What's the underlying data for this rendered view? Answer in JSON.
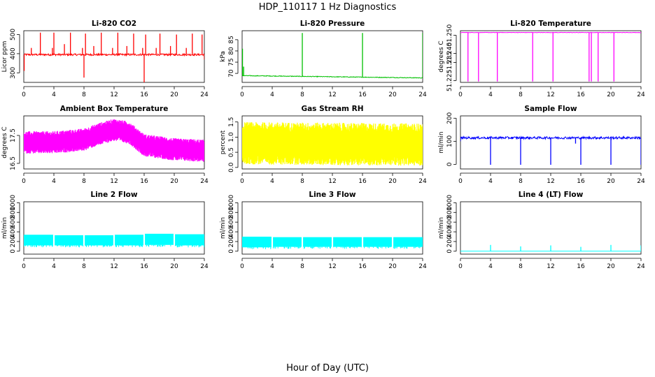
{
  "figure": {
    "title": "HDP_110117  1 Hz Diagnostics",
    "xlabel": "Hour of Day (UTC)",
    "colors": {
      "co2": "#ff0000",
      "pressure": "#00c000",
      "temperature": "#ff00ff",
      "ambient": "#ff00ff",
      "rh": "#ffff00",
      "sample_flow": "#0000ff",
      "line_flow": "#00ffff"
    }
  },
  "chart_data": [
    {
      "type": "line",
      "title": "Li-820 CO2",
      "ylabel": "Licor ppm",
      "xlim": [
        0,
        24
      ],
      "ylim": [
        250,
        520
      ],
      "xticks": [
        "0",
        "4",
        "8",
        "12",
        "16",
        "20",
        "24"
      ],
      "yticks": [
        {
          "value": 300,
          "label": "300"
        },
        {
          "value": 400,
          "label": "400"
        },
        {
          "value": 500,
          "label": "500"
        }
      ],
      "color": "#ff0000",
      "style": "spiky",
      "baseline": 395,
      "noise": 5,
      "spikes": [
        {
          "x": 0.05,
          "y": 310
        },
        {
          "x": 1.0,
          "y": 430
        },
        {
          "x": 2.2,
          "y": 510
        },
        {
          "x": 3.8,
          "y": 430
        },
        {
          "x": 4.0,
          "y": 510
        },
        {
          "x": 5.4,
          "y": 450
        },
        {
          "x": 6.2,
          "y": 510
        },
        {
          "x": 7.8,
          "y": 430
        },
        {
          "x": 8.0,
          "y": 275
        },
        {
          "x": 8.2,
          "y": 505
        },
        {
          "x": 9.3,
          "y": 440
        },
        {
          "x": 10.3,
          "y": 510
        },
        {
          "x": 11.8,
          "y": 430
        },
        {
          "x": 12.5,
          "y": 510
        },
        {
          "x": 13.7,
          "y": 440
        },
        {
          "x": 14.6,
          "y": 505
        },
        {
          "x": 15.8,
          "y": 430
        },
        {
          "x": 16.0,
          "y": 250
        },
        {
          "x": 16.2,
          "y": 500
        },
        {
          "x": 17.6,
          "y": 430
        },
        {
          "x": 18.1,
          "y": 505
        },
        {
          "x": 19.5,
          "y": 440
        },
        {
          "x": 20.3,
          "y": 500
        },
        {
          "x": 21.6,
          "y": 430
        },
        {
          "x": 22.4,
          "y": 505
        },
        {
          "x": 23.7,
          "y": 500
        },
        {
          "x": 24.0,
          "y": 370
        }
      ]
    },
    {
      "type": "line",
      "title": "Li-820 Pressure",
      "ylabel": "kPa",
      "xlim": [
        0,
        24
      ],
      "ylim": [
        66,
        89
      ],
      "xticks": [
        "0",
        "4",
        "8",
        "12",
        "16",
        "20",
        "24"
      ],
      "yticks": [
        {
          "value": 70,
          "label": "70"
        },
        {
          "value": 75,
          "label": "75"
        },
        {
          "value": 80,
          "label": "80"
        },
        {
          "value": 85,
          "label": "85"
        }
      ],
      "color": "#00c000",
      "style": "drift",
      "start": 69.0,
      "end": 68.0,
      "noise": 0.15,
      "spikes": [
        {
          "x": 0.05,
          "y": 81
        },
        {
          "x": 0.2,
          "y": 73
        },
        {
          "x": 8.0,
          "y": 88
        },
        {
          "x": 16.0,
          "y": 88
        },
        {
          "x": 24.0,
          "y": 88
        }
      ]
    },
    {
      "type": "line",
      "title": "Li-820 Temperature",
      "ylabel": "degrees C",
      "xlim": [
        0,
        24
      ],
      "ylim": [
        51.224,
        51.2525
      ],
      "xticks": [
        "0",
        "4",
        "8",
        "12",
        "16",
        "20",
        "24"
      ],
      "yticks": [
        {
          "value": 51.225,
          "label": "51.225"
        },
        {
          "value": 51.235,
          "label": "51.235"
        },
        {
          "value": 51.24,
          "label": "51.240"
        },
        {
          "value": 51.25,
          "label": "51.250"
        }
      ],
      "color": "#ff00ff",
      "style": "dips",
      "baseline": 51.2515,
      "noise": 0.0001,
      "spikes": [
        {
          "x": 1.0,
          "y": 51.2245
        },
        {
          "x": 2.4,
          "y": 51.2245
        },
        {
          "x": 4.9,
          "y": 51.2245
        },
        {
          "x": 9.6,
          "y": 51.2245
        },
        {
          "x": 12.3,
          "y": 51.2245
        },
        {
          "x": 17.1,
          "y": 51.2245
        },
        {
          "x": 17.4,
          "y": 51.2245
        },
        {
          "x": 18.3,
          "y": 51.2245
        },
        {
          "x": 20.4,
          "y": 51.2245
        }
      ]
    },
    {
      "type": "line",
      "title": "Ambient Box Temperature",
      "ylabel": "degrees C",
      "xlim": [
        0,
        24
      ],
      "ylim": [
        16.3,
        18.2
      ],
      "xticks": [
        "0",
        "4",
        "8",
        "12",
        "16",
        "20",
        "24"
      ],
      "yticks": [
        {
          "value": 16.5,
          "label": "16.5"
        },
        {
          "value": 17.5,
          "label": "17.5"
        }
      ],
      "color": "#ff00ff",
      "style": "band",
      "center": [
        {
          "x": 0,
          "y": 17.25
        },
        {
          "x": 4,
          "y": 17.25
        },
        {
          "x": 8,
          "y": 17.35
        },
        {
          "x": 10,
          "y": 17.55
        },
        {
          "x": 12,
          "y": 17.7
        },
        {
          "x": 14,
          "y": 17.6
        },
        {
          "x": 16,
          "y": 17.15
        },
        {
          "x": 20,
          "y": 17.0
        },
        {
          "x": 24,
          "y": 16.95
        }
      ],
      "half_width": 0.4
    },
    {
      "type": "line",
      "title": "Gas Stream RH",
      "ylabel": "percent",
      "xlim": [
        0,
        24
      ],
      "ylim": [
        -0.05,
        1.7
      ],
      "xticks": [
        "0",
        "4",
        "8",
        "12",
        "16",
        "20",
        "24"
      ],
      "yticks": [
        {
          "value": 0.0,
          "label": "0.0"
        },
        {
          "value": 0.5,
          "label": "0.5"
        },
        {
          "value": 1.0,
          "label": "1.0"
        },
        {
          "value": 1.5,
          "label": "1.5"
        }
      ],
      "color": "#ffff00",
      "style": "band",
      "center": [
        {
          "x": 0,
          "y": 0.8
        },
        {
          "x": 24,
          "y": 0.75
        }
      ],
      "half_width": 0.7
    },
    {
      "type": "line",
      "title": "Sample Flow",
      "ylabel": "ml/min",
      "xlim": [
        0,
        24
      ],
      "ylim": [
        -20,
        210
      ],
      "xticks": [
        "0",
        "4",
        "8",
        "12",
        "16",
        "20",
        "24"
      ],
      "yticks": [
        {
          "value": 0,
          "label": "0"
        },
        {
          "value": 100,
          "label": "100"
        },
        {
          "value": 200,
          "label": "200"
        }
      ],
      "color": "#0000ff",
      "style": "spiky",
      "baseline": 115,
      "noise": 5,
      "spikes": [
        {
          "x": 0.0,
          "y": 100
        },
        {
          "x": 4.0,
          "y": -2
        },
        {
          "x": 8.0,
          "y": -2
        },
        {
          "x": 12.0,
          "y": -2
        },
        {
          "x": 15.3,
          "y": 90
        },
        {
          "x": 16.0,
          "y": -2
        },
        {
          "x": 20.0,
          "y": -2
        },
        {
          "x": 24.0,
          "y": -2
        }
      ]
    },
    {
      "type": "line",
      "title": "Line 2 Flow",
      "ylabel": "ml/min",
      "xlim": [
        0,
        24
      ],
      "ylim": [
        -60,
        1020
      ],
      "xticks": [
        "0",
        "4",
        "8",
        "12",
        "16",
        "20",
        "24"
      ],
      "yticks": [
        {
          "value": 0,
          "label": "0"
        },
        {
          "value": 200,
          "label": "200"
        },
        {
          "value": 400,
          "label": "400"
        },
        {
          "value": 600,
          "label": "600"
        },
        {
          "value": 800,
          "label": "800"
        },
        {
          "value": 1000,
          "label": "1000"
        }
      ],
      "color": "#00ffff",
      "style": "blocks",
      "blocks": [
        {
          "x0": 0.0,
          "x1": 3.9,
          "lo": 120,
          "hi": 340
        },
        {
          "x0": 4.1,
          "x1": 7.9,
          "lo": 120,
          "hi": 330
        },
        {
          "x0": 8.1,
          "x1": 11.9,
          "lo": 120,
          "hi": 330
        },
        {
          "x0": 12.1,
          "x1": 15.9,
          "lo": 120,
          "hi": 340
        },
        {
          "x0": 16.1,
          "x1": 19.9,
          "lo": 130,
          "hi": 360
        },
        {
          "x0": 20.1,
          "x1": 24.0,
          "lo": 120,
          "hi": 350
        }
      ]
    },
    {
      "type": "line",
      "title": "Line 3 Flow",
      "ylabel": "ml/min",
      "xlim": [
        0,
        24
      ],
      "ylim": [
        -60,
        1020
      ],
      "xticks": [
        "0",
        "4",
        "8",
        "12",
        "16",
        "20",
        "24"
      ],
      "yticks": [
        {
          "value": 0,
          "label": "0"
        },
        {
          "value": 200,
          "label": "200"
        },
        {
          "value": 400,
          "label": "400"
        },
        {
          "value": 600,
          "label": "600"
        },
        {
          "value": 800,
          "label": "800"
        },
        {
          "value": 1000,
          "label": "1000"
        }
      ],
      "color": "#00ffff",
      "style": "blocks",
      "blocks": [
        {
          "x0": 0.0,
          "x1": 3.9,
          "lo": 80,
          "hi": 300
        },
        {
          "x0": 4.1,
          "x1": 7.9,
          "lo": 90,
          "hi": 290
        },
        {
          "x0": 8.1,
          "x1": 11.9,
          "lo": 90,
          "hi": 290
        },
        {
          "x0": 12.1,
          "x1": 15.9,
          "lo": 90,
          "hi": 290
        },
        {
          "x0": 16.1,
          "x1": 19.9,
          "lo": 90,
          "hi": 290
        },
        {
          "x0": 20.1,
          "x1": 24.0,
          "lo": 90,
          "hi": 290
        }
      ]
    },
    {
      "type": "line",
      "title": "Line 4 (LT) Flow",
      "ylabel": "ml/min",
      "xlim": [
        0,
        24
      ],
      "ylim": [
        -60,
        1020
      ],
      "xticks": [
        "0",
        "4",
        "8",
        "12",
        "16",
        "20",
        "24"
      ],
      "yticks": [
        {
          "value": 0,
          "label": "0"
        },
        {
          "value": 200,
          "label": "200"
        },
        {
          "value": 400,
          "label": "400"
        },
        {
          "value": 600,
          "label": "600"
        },
        {
          "value": 800,
          "label": "800"
        },
        {
          "value": 1000,
          "label": "1000"
        }
      ],
      "color": "#00ffff",
      "style": "spiky",
      "baseline": 0,
      "noise": 0,
      "spikes": [
        {
          "x": 4.0,
          "y": 130
        },
        {
          "x": 8.0,
          "y": 100
        },
        {
          "x": 12.0,
          "y": 120
        },
        {
          "x": 16.0,
          "y": 90
        },
        {
          "x": 20.0,
          "y": 130
        },
        {
          "x": 24.0,
          "y": 120
        }
      ]
    }
  ]
}
